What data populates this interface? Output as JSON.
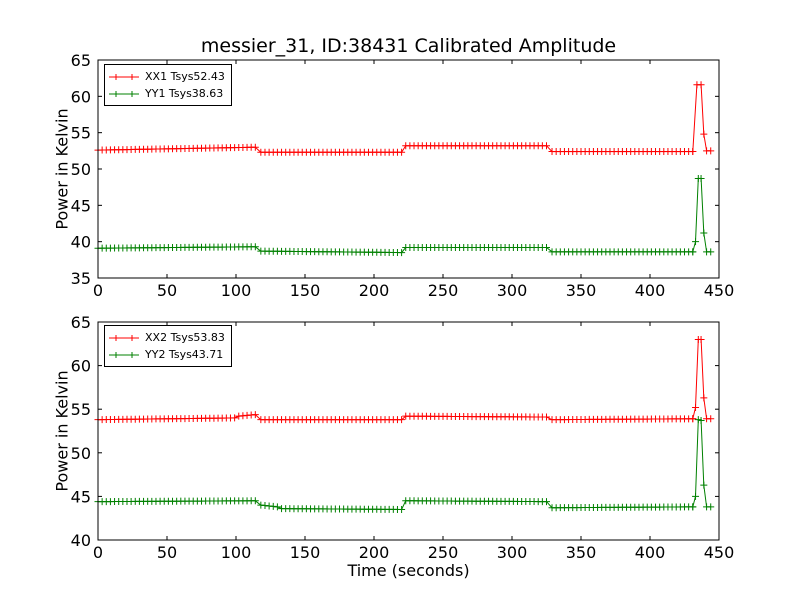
{
  "title": "messier_31, ID:38431 Calibrated Amplitude",
  "xlabel": "Time (seconds)",
  "colors": {
    "XX": "#ff0000",
    "YY": "#008000",
    "axis": "#000000"
  },
  "chart_data": [
    {
      "type": "line",
      "ylabel": "Power in Kelvin",
      "xlim": [
        0,
        450
      ],
      "ylim": [
        35,
        65
      ],
      "xticks": [
        0,
        50,
        100,
        150,
        200,
        250,
        300,
        350,
        400,
        450
      ],
      "yticks": [
        35,
        40,
        45,
        50,
        55,
        60,
        65
      ],
      "marker": "+",
      "legend_position": "top-left",
      "series": [
        {
          "name": "XX1 Tsys52.43",
          "color": "#ff0000",
          "segments": [
            {
              "x_start": 0,
              "x_end": 115,
              "y_start": 52.6,
              "y_end": 53.0
            },
            {
              "x_start": 118,
              "x_end": 220,
              "y_start": 52.3,
              "y_end": 52.3
            },
            {
              "x_start": 223,
              "x_end": 326,
              "y_start": 53.2,
              "y_end": 53.2
            },
            {
              "x_start": 329,
              "x_end": 431,
              "y_start": 52.4,
              "y_end": 52.4
            }
          ],
          "spike": [
            [
              431,
              52.4
            ],
            [
              434,
              61.6
            ],
            [
              437,
              61.6
            ],
            [
              439,
              54.8
            ],
            [
              441,
              52.5
            ],
            [
              444,
              52.5
            ]
          ]
        },
        {
          "name": "YY1 Tsys38.63",
          "color": "#008000",
          "segments": [
            {
              "x_start": 0,
              "x_end": 115,
              "y_start": 39.1,
              "y_end": 39.3
            },
            {
              "x_start": 118,
              "x_end": 220,
              "y_start": 38.7,
              "y_end": 38.5
            },
            {
              "x_start": 223,
              "x_end": 326,
              "y_start": 39.2,
              "y_end": 39.2
            },
            {
              "x_start": 329,
              "x_end": 431,
              "y_start": 38.6,
              "y_end": 38.6
            }
          ],
          "spike": [
            [
              431,
              38.6
            ],
            [
              433,
              40.0
            ],
            [
              435,
              48.7
            ],
            [
              437,
              48.7
            ],
            [
              439,
              41.2
            ],
            [
              441,
              38.6
            ],
            [
              444,
              38.6
            ]
          ]
        }
      ]
    },
    {
      "type": "line",
      "ylabel": "Power in Kelvin",
      "xlim": [
        0,
        450
      ],
      "ylim": [
        40,
        65
      ],
      "xticks": [
        0,
        50,
        100,
        150,
        200,
        250,
        300,
        350,
        400,
        450
      ],
      "yticks": [
        40,
        45,
        50,
        55,
        60,
        65
      ],
      "marker": "+",
      "legend_position": "top-left",
      "series": [
        {
          "name": "XX2 Tsys53.83",
          "color": "#ff0000",
          "segments": [
            {
              "x_start": 0,
              "x_end": 100,
              "y_start": 53.8,
              "y_end": 54.0
            },
            {
              "x_start": 102,
              "x_end": 115,
              "y_start": 54.2,
              "y_end": 54.4
            },
            {
              "x_start": 118,
              "x_end": 220,
              "y_start": 53.8,
              "y_end": 53.8
            },
            {
              "x_start": 223,
              "x_end": 326,
              "y_start": 54.2,
              "y_end": 54.1
            },
            {
              "x_start": 329,
              "x_end": 431,
              "y_start": 53.8,
              "y_end": 53.9
            }
          ],
          "spike": [
            [
              431,
              53.9
            ],
            [
              433,
              55.2
            ],
            [
              435,
              63.0
            ],
            [
              437,
              63.0
            ],
            [
              439,
              56.3
            ],
            [
              441,
              53.9
            ],
            [
              444,
              53.9
            ]
          ]
        },
        {
          "name": "YY2 Tsys43.71",
          "color": "#008000",
          "segments": [
            {
              "x_start": 0,
              "x_end": 115,
              "y_start": 44.4,
              "y_end": 44.5
            },
            {
              "x_start": 118,
              "x_end": 130,
              "y_start": 44.0,
              "y_end": 43.8
            },
            {
              "x_start": 133,
              "x_end": 220,
              "y_start": 43.6,
              "y_end": 43.5
            },
            {
              "x_start": 223,
              "x_end": 326,
              "y_start": 44.5,
              "y_end": 44.4
            },
            {
              "x_start": 329,
              "x_end": 431,
              "y_start": 43.7,
              "y_end": 43.8
            }
          ],
          "spike": [
            [
              431,
              43.8
            ],
            [
              433,
              45.0
            ],
            [
              435,
              53.8
            ],
            [
              437,
              53.7
            ],
            [
              439,
              46.3
            ],
            [
              441,
              43.8
            ],
            [
              444,
              43.8
            ]
          ]
        }
      ]
    }
  ]
}
